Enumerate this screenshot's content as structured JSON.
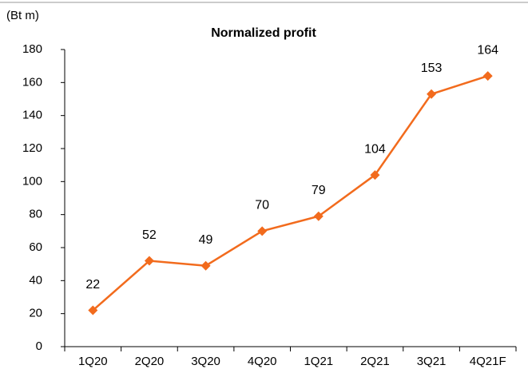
{
  "chart_data": {
    "type": "line",
    "title": "Normalized profit",
    "unit_label": "(Bt m)",
    "categories": [
      "1Q20",
      "2Q20",
      "3Q20",
      "4Q20",
      "1Q21",
      "2Q21",
      "3Q21",
      "4Q21F"
    ],
    "series": [
      {
        "name": "Normalized profit",
        "color": "#f26b1d",
        "values": [
          22,
          52,
          49,
          70,
          79,
          104,
          153,
          164
        ]
      }
    ],
    "ylim": [
      0,
      180
    ],
    "yticks": [
      0,
      20,
      40,
      60,
      80,
      100,
      120,
      140,
      160,
      180
    ]
  }
}
